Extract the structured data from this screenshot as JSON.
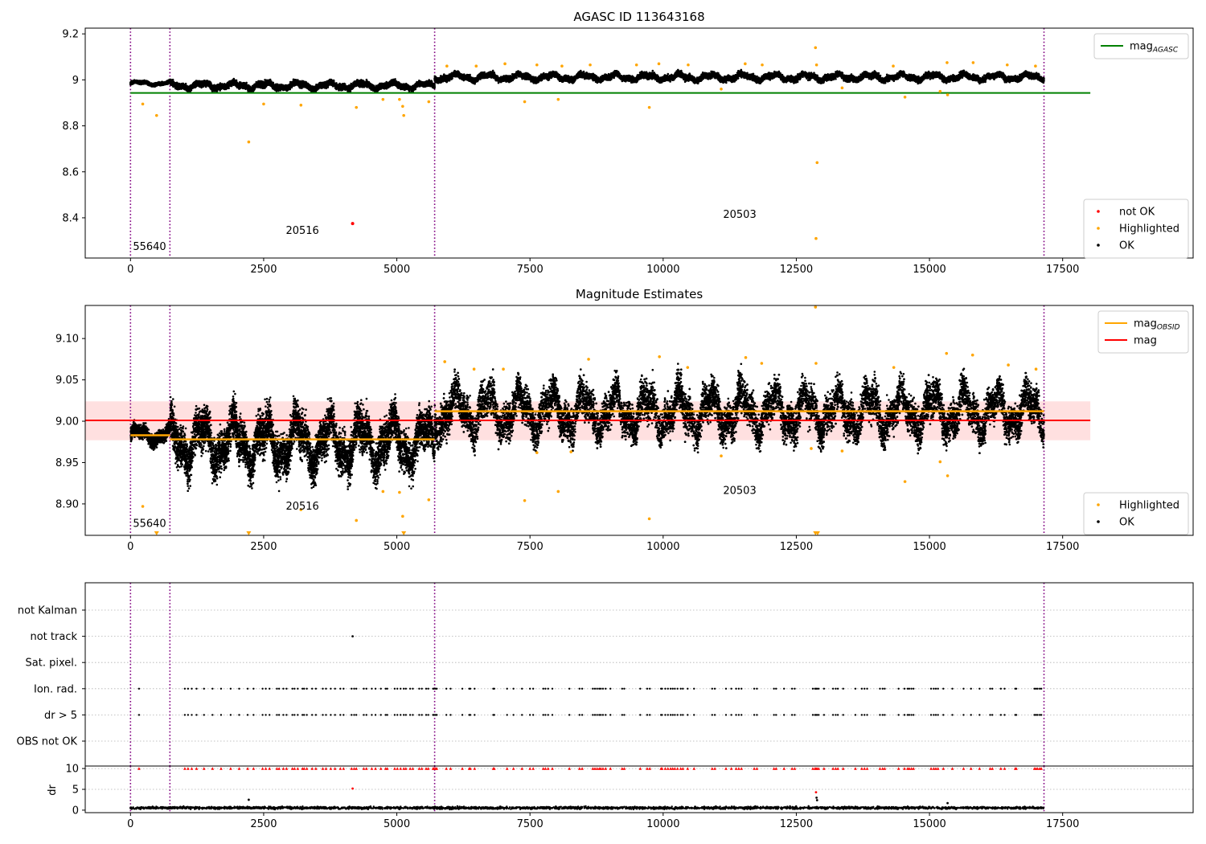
{
  "chart_data": [
    {
      "type": "scatter",
      "title": "AGASC ID 113643168",
      "x_ticks": [
        0,
        2500,
        5000,
        7500,
        10000,
        12500,
        15000,
        17500
      ],
      "x_range": [
        -850,
        19950
      ],
      "y_ticks": [
        8.4,
        8.6,
        8.8,
        9.0,
        9.2
      ],
      "y_range": [
        8.225,
        9.225
      ],
      "series": [
        {
          "name": "not OK",
          "color": "#ff0000",
          "points": [
            [
              4170,
              8.375
            ]
          ]
        },
        {
          "name": "Highlighted",
          "color": "#ffa500",
          "points": [
            [
              230,
              8.895
            ],
            [
              490,
              8.845
            ],
            [
              2220,
              8.73
            ],
            [
              2500,
              8.895
            ],
            [
              3200,
              8.89
            ],
            [
              4240,
              8.88
            ],
            [
              4740,
              8.915
            ],
            [
              5050,
              8.915
            ],
            [
              5110,
              8.885
            ],
            [
              5130,
              8.845
            ],
            [
              5600,
              8.905
            ],
            [
              7400,
              8.905
            ],
            [
              8030,
              8.915
            ],
            [
              9740,
              8.88
            ],
            [
              11090,
              8.96
            ],
            [
              12860,
              9.14
            ],
            [
              12890,
              8.64
            ],
            [
              12870,
              8.31
            ],
            [
              13360,
              8.965
            ],
            [
              14540,
              8.925
            ],
            [
              15340,
              8.935
            ],
            [
              15200,
              8.95
            ],
            [
              5940,
              9.06
            ],
            [
              6490,
              9.06
            ],
            [
              7030,
              9.07
            ],
            [
              7630,
              9.065
            ],
            [
              8100,
              9.06
            ],
            [
              8630,
              9.065
            ],
            [
              9500,
              9.065
            ],
            [
              9920,
              9.07
            ],
            [
              10470,
              9.065
            ],
            [
              11540,
              9.07
            ],
            [
              11860,
              9.065
            ],
            [
              12880,
              9.065
            ],
            [
              14320,
              9.06
            ],
            [
              15330,
              9.075
            ],
            [
              15820,
              9.075
            ],
            [
              16460,
              9.065
            ],
            [
              16990,
              9.06
            ]
          ]
        },
        {
          "name": "OK",
          "color": "#000000"
        }
      ],
      "bands": [
        {
          "x0": 0,
          "x1": 750,
          "base": 8.985,
          "amp": 0.012
        },
        {
          "x0": 750,
          "x1": 5710,
          "base": 8.975,
          "amp": 0.022
        },
        {
          "x0": 5710,
          "x1": 17150,
          "base": 9.012,
          "amp": 0.022
        }
      ],
      "lines": [
        {
          "name": "mag_AGASC",
          "color": "#008000",
          "y": 8.943,
          "x0": 0,
          "x1": 18020
        }
      ],
      "vlines": [
        0,
        740,
        5710,
        17150
      ],
      "obs_labels": [
        {
          "text": "55640",
          "x": 0,
          "y": 8.26
        },
        {
          "text": "20516",
          "x": 2870,
          "y": 8.33
        },
        {
          "text": "20503",
          "x": 11080,
          "y": 8.4
        }
      ],
      "legend_upper": [
        {
          "label": "mag",
          "sub": "AGASC",
          "color": "#008000"
        }
      ],
      "legend_lower": [
        {
          "label": "not OK",
          "color": "#ff0000"
        },
        {
          "label": "Highlighted",
          "color": "#ffa500"
        },
        {
          "label": "OK",
          "color": "#000000"
        }
      ]
    },
    {
      "type": "scatter",
      "title": "Magnitude Estimates",
      "x_ticks": [
        0,
        2500,
        5000,
        7500,
        10000,
        12500,
        15000,
        17500
      ],
      "x_range": [
        -850,
        19950
      ],
      "y_ticks": [
        8.9,
        8.95,
        9.0,
        9.05,
        9.1
      ],
      "y_ticks_text": [
        "8.90",
        "8.95",
        "9.00",
        "9.05",
        "9.10"
      ],
      "y_range": [
        8.862,
        9.14
      ],
      "series": [
        {
          "name": "Highlighted",
          "color": "#ffa500",
          "points": [
            [
              230,
              8.897
            ],
            [
              3200,
              8.893
            ],
            [
              4240,
              8.88
            ],
            [
              4740,
              8.915
            ],
            [
              5050,
              8.914
            ],
            [
              5110,
              8.885
            ],
            [
              5600,
              8.905
            ],
            [
              7400,
              8.904
            ],
            [
              8030,
              8.915
            ],
            [
              9740,
              8.882
            ],
            [
              11090,
              8.958
            ],
            [
              13360,
              8.964
            ],
            [
              14540,
              8.927
            ],
            [
              15200,
              8.951
            ],
            [
              15340,
              8.934
            ],
            [
              7630,
              8.962
            ],
            [
              8270,
              8.963
            ],
            [
              12780,
              8.967
            ],
            [
              12860,
              9.138
            ],
            [
              5900,
              9.072
            ],
            [
              6450,
              9.063
            ],
            [
              7000,
              9.063
            ],
            [
              8600,
              9.075
            ],
            [
              9930,
              9.078
            ],
            [
              10460,
              9.065
            ],
            [
              11550,
              9.077
            ],
            [
              11850,
              9.07
            ],
            [
              12870,
              9.07
            ],
            [
              14330,
              9.065
            ],
            [
              15320,
              9.082
            ],
            [
              15810,
              9.08
            ],
            [
              16480,
              9.068
            ],
            [
              17000,
              9.063
            ]
          ]
        },
        {
          "name": "OK",
          "color": "#000000"
        }
      ],
      "bands": [
        {
          "x0": 0,
          "x1": 750,
          "base": 8.983,
          "amp": 0.014
        },
        {
          "x0": 750,
          "x1": 5710,
          "base": 8.975,
          "amp": 0.045
        },
        {
          "x0": 5710,
          "x1": 17150,
          "base": 9.012,
          "amp": 0.04
        }
      ],
      "lines": [
        {
          "name": "mag",
          "color": "#ff0000",
          "y": 9.001,
          "x0": -850,
          "x1": 18020,
          "width": 2
        },
        {
          "name": "mag_OBSID",
          "color": "#ffa500",
          "segments": [
            [
              0,
              740,
              8.983
            ],
            [
              740,
              5710,
              8.978
            ],
            [
              5710,
              17150,
              9.012
            ]
          ],
          "width": 2.5
        }
      ],
      "shade": {
        "color": "#ff0000",
        "opacity": 0.12,
        "y0": 8.977,
        "y1": 9.024,
        "x0": -850,
        "x1": 18020
      },
      "triangles": [
        [
          490,
          8.864
        ],
        [
          2220,
          8.864
        ],
        [
          5130,
          8.864
        ],
        [
          12860,
          8.864
        ],
        [
          12900,
          8.864
        ]
      ],
      "vlines": [
        0,
        740,
        5710,
        17150
      ],
      "obs_labels": [
        {
          "text": "55640",
          "x": 0,
          "y": 8.872
        },
        {
          "text": "20516",
          "x": 2870,
          "y": 8.893
        },
        {
          "text": "20503",
          "x": 11080,
          "y": 8.912
        }
      ],
      "legend_upper": [
        {
          "label": "mag",
          "sub": "OBSID",
          "color": "#ffa500"
        },
        {
          "label": "mag",
          "sub": "",
          "color": "#ff0000"
        }
      ],
      "legend_lower": [
        {
          "label": "Highlighted",
          "color": "#ffa500"
        },
        {
          "label": "OK",
          "color": "#000000"
        }
      ]
    },
    {
      "type": "scatter",
      "title": "",
      "x_range": [
        -850,
        19950
      ],
      "categories": [
        "not Kalman",
        "not track",
        "Sat. pixel.",
        "Ion. rad.",
        "dr > 5",
        "OBS not OK"
      ],
      "not_track_points": [
        4170
      ],
      "flag_times": [
        160,
        1020,
        1080,
        1150,
        1240,
        1380,
        1540,
        1700,
        1880,
        2040,
        2200,
        2310,
        2480,
        2540,
        2610,
        2750,
        2790,
        2870,
        2930,
        3040,
        3080,
        3140,
        3230,
        3260,
        3310,
        3410,
        3480,
        3610,
        3670,
        3760,
        3840,
        3940,
        4000,
        4150,
        4200,
        4240,
        4380,
        4430,
        4530,
        4600,
        4700,
        4790,
        4820,
        4960,
        5010,
        5070,
        5130,
        5170,
        5250,
        5300,
        5420,
        5470,
        5550,
        5590,
        5680,
        5700,
        5730,
        5750,
        5930,
        6010,
        6230,
        6360,
        6380,
        6460,
        6810,
        6830,
        7070,
        7190,
        7350,
        7500,
        7560,
        7750,
        7790,
        7840,
        7920,
        8240,
        8430,
        8480,
        8680,
        8720,
        8760,
        8800,
        8830,
        8870,
        8920,
        9010,
        9230,
        9270,
        9570,
        9700,
        9750,
        9960,
        9980,
        10040,
        10090,
        10140,
        10180,
        10220,
        10270,
        10330,
        10370,
        10460,
        10580,
        10920,
        10970,
        11180,
        11280,
        11370,
        11420,
        11470,
        11710,
        11760,
        12080,
        12120,
        12270,
        12420,
        12470,
        12810,
        12850,
        12870,
        12890,
        12920,
        13020,
        13190,
        13240,
        13280,
        13380,
        13610,
        13730,
        13780,
        13830,
        14070,
        14120,
        14160,
        14420,
        14530,
        14590,
        14620,
        14660,
        14700,
        15030,
        15080,
        15120,
        15160,
        15260,
        15430,
        15640,
        15780,
        15940,
        16140,
        16180,
        16340,
        16410,
        16610,
        16630,
        16970,
        17000,
        17030,
        17070,
        17100
      ],
      "vlines": [
        0,
        740,
        5710,
        17150
      ]
    },
    {
      "type": "scatter",
      "title": "",
      "ylabel": "dr",
      "x_ticks": [
        0,
        2500,
        5000,
        7500,
        10000,
        12500,
        15000,
        17500
      ],
      "x_range": [
        -850,
        19950
      ],
      "y_ticks": [
        0,
        5,
        10
      ],
      "y_range": [
        -0.6,
        10.6
      ],
      "outliers": [
        [
          2220,
          2.5
        ],
        [
          4170,
          5.2
        ],
        [
          12870,
          4.3
        ],
        [
          12880,
          3.0
        ],
        [
          12890,
          2.4
        ],
        [
          15340,
          1.7
        ]
      ],
      "vlines": [
        0,
        740,
        5710,
        17150
      ]
    }
  ]
}
